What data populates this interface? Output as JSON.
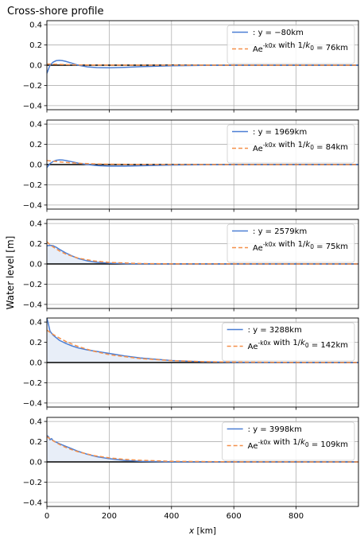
{
  "figure": {
    "title": "Cross-shore profile",
    "ylabel": "Water level [m]",
    "xlabel": "x [km]",
    "colors": {
      "series": "#4c7fd4",
      "fit": "#f5904a",
      "fill": "#e8eef8",
      "zero_line": "#000000",
      "grid": "#b0b0b0"
    }
  },
  "chart_data": [
    {
      "type": "line",
      "xlim": [
        0,
        1000
      ],
      "ylim": [
        -0.44,
        0.44
      ],
      "xticks": [
        0,
        200,
        400,
        600,
        800
      ],
      "yticks": [
        -0.4,
        -0.2,
        0.0,
        0.2,
        0.4
      ],
      "grid": true,
      "legend_position": "top-right",
      "fill_under": false,
      "series": [
        {
          "name": ": y = −80km",
          "style": "solid",
          "x": [
            0,
            5,
            10,
            20,
            30,
            40,
            50,
            60,
            80,
            100,
            130,
            160,
            200,
            250,
            300,
            400,
            500,
            700,
            1000
          ],
          "y": [
            -0.08,
            -0.04,
            0.0,
            0.03,
            0.045,
            0.048,
            0.045,
            0.038,
            0.02,
            0.0,
            -0.017,
            -0.024,
            -0.026,
            -0.022,
            -0.015,
            -0.006,
            -0.002,
            0.0,
            0.0
          ]
        },
        {
          "name": "Ae^{-k0x} with 1/k0 = 76km",
          "style": "dashed",
          "x": [
            0,
            20,
            50,
            100,
            200,
            400,
            1000
          ],
          "y": [
            0.012,
            0.01,
            0.007,
            0.003,
            0.001,
            0.0,
            0.0
          ]
        }
      ]
    },
    {
      "type": "line",
      "xlim": [
        0,
        1000
      ],
      "ylim": [
        -0.44,
        0.44
      ],
      "xticks": [
        0,
        200,
        400,
        600,
        800
      ],
      "yticks": [
        -0.4,
        -0.2,
        0.0,
        0.2,
        0.4
      ],
      "grid": true,
      "legend_position": "top-right",
      "fill_under": false,
      "series": [
        {
          "name": ": y = 1969km",
          "style": "solid",
          "x": [
            0,
            5,
            10,
            20,
            30,
            40,
            50,
            60,
            80,
            100,
            130,
            160,
            200,
            250,
            300,
            400,
            500,
            700,
            1000
          ],
          "y": [
            -0.03,
            -0.01,
            0.01,
            0.03,
            0.042,
            0.046,
            0.045,
            0.04,
            0.028,
            0.015,
            0.0,
            -0.01,
            -0.016,
            -0.016,
            -0.012,
            -0.005,
            -0.002,
            0.0,
            0.0
          ]
        },
        {
          "name": "Ae^{-k0x} with 1/k0 = 84km",
          "style": "dashed",
          "x": [
            0,
            20,
            50,
            100,
            150,
            200,
            300,
            400,
            1000
          ],
          "y": [
            0.04,
            0.033,
            0.024,
            0.013,
            0.007,
            0.004,
            0.001,
            0.0,
            0.0
          ]
        }
      ]
    },
    {
      "type": "line",
      "xlim": [
        0,
        1000
      ],
      "ylim": [
        -0.44,
        0.44
      ],
      "xticks": [
        0,
        200,
        400,
        600,
        800
      ],
      "yticks": [
        -0.4,
        -0.2,
        0.0,
        0.2,
        0.4
      ],
      "grid": true,
      "legend_position": "top-right",
      "fill_under": true,
      "series": [
        {
          "name": ": y = 2579km",
          "style": "solid",
          "x": [
            0,
            10,
            20,
            30,
            40,
            60,
            80,
            100,
            130,
            160,
            200,
            250,
            300,
            400,
            500,
            1000
          ],
          "y": [
            0.18,
            0.185,
            0.18,
            0.165,
            0.145,
            0.11,
            0.08,
            0.055,
            0.03,
            0.017,
            0.008,
            0.003,
            0.001,
            0.0,
            0.0,
            0.0
          ]
        },
        {
          "name": "Ae^{-k0x} with 1/k0 = 75km",
          "style": "dashed",
          "x": [
            0,
            10,
            20,
            40,
            60,
            80,
            100,
            150,
            200,
            300,
            400,
            1000
          ],
          "y": [
            0.22,
            0.19,
            0.168,
            0.129,
            0.099,
            0.077,
            0.058,
            0.03,
            0.015,
            0.004,
            0.001,
            0.0
          ]
        }
      ]
    },
    {
      "type": "line",
      "xlim": [
        0,
        1000
      ],
      "ylim": [
        -0.44,
        0.44
      ],
      "xticks": [
        0,
        200,
        400,
        600,
        800
      ],
      "yticks": [
        -0.4,
        -0.2,
        0.0,
        0.2,
        0.4
      ],
      "grid": true,
      "legend_position": "top-right",
      "fill_under": true,
      "series": [
        {
          "name": ": y = 3288km",
          "style": "solid",
          "x": [
            0,
            5,
            10,
            20,
            40,
            60,
            80,
            100,
            130,
            160,
            200,
            250,
            300,
            400,
            500,
            600,
            700,
            800,
            1000
          ],
          "y": [
            0.44,
            0.38,
            0.31,
            0.27,
            0.22,
            0.19,
            0.165,
            0.145,
            0.125,
            0.11,
            0.09,
            0.065,
            0.045,
            0.02,
            0.008,
            0.003,
            0.001,
            0.0,
            0.0
          ]
        },
        {
          "name": "Ae^{-k0x} with 1/k0 = 142km",
          "style": "dashed",
          "x": [
            0,
            20,
            40,
            60,
            80,
            100,
            150,
            200,
            300,
            400,
            500,
            600,
            800,
            1000
          ],
          "y": [
            0.32,
            0.278,
            0.242,
            0.21,
            0.183,
            0.159,
            0.112,
            0.078,
            0.039,
            0.019,
            0.009,
            0.005,
            0.001,
            0.0
          ]
        }
      ]
    },
    {
      "type": "line",
      "xlim": [
        0,
        1000
      ],
      "ylim": [
        -0.44,
        0.44
      ],
      "xticks": [
        0,
        200,
        400,
        600,
        800
      ],
      "yticks": [
        -0.4,
        -0.2,
        0.0,
        0.2,
        0.4
      ],
      "grid": true,
      "legend_position": "top-right",
      "fill_under": true,
      "series": [
        {
          "name": ": y = 3998km",
          "style": "solid",
          "x": [
            0,
            5,
            10,
            15,
            20,
            40,
            60,
            80,
            100,
            130,
            160,
            200,
            250,
            300,
            400,
            500,
            1000
          ],
          "y": [
            0.26,
            0.25,
            0.22,
            0.23,
            0.21,
            0.18,
            0.155,
            0.13,
            0.105,
            0.075,
            0.052,
            0.032,
            0.015,
            0.006,
            0.001,
            0.0,
            0.0
          ]
        },
        {
          "name": "Ae^{-k0x} with 1/k0 = 109km",
          "style": "dashed",
          "x": [
            0,
            20,
            40,
            60,
            80,
            100,
            150,
            200,
            250,
            300,
            400,
            600,
            1000
          ],
          "y": [
            0.25,
            0.208,
            0.173,
            0.144,
            0.12,
            0.1,
            0.063,
            0.04,
            0.025,
            0.016,
            0.006,
            0.001,
            0.0
          ]
        }
      ]
    }
  ]
}
